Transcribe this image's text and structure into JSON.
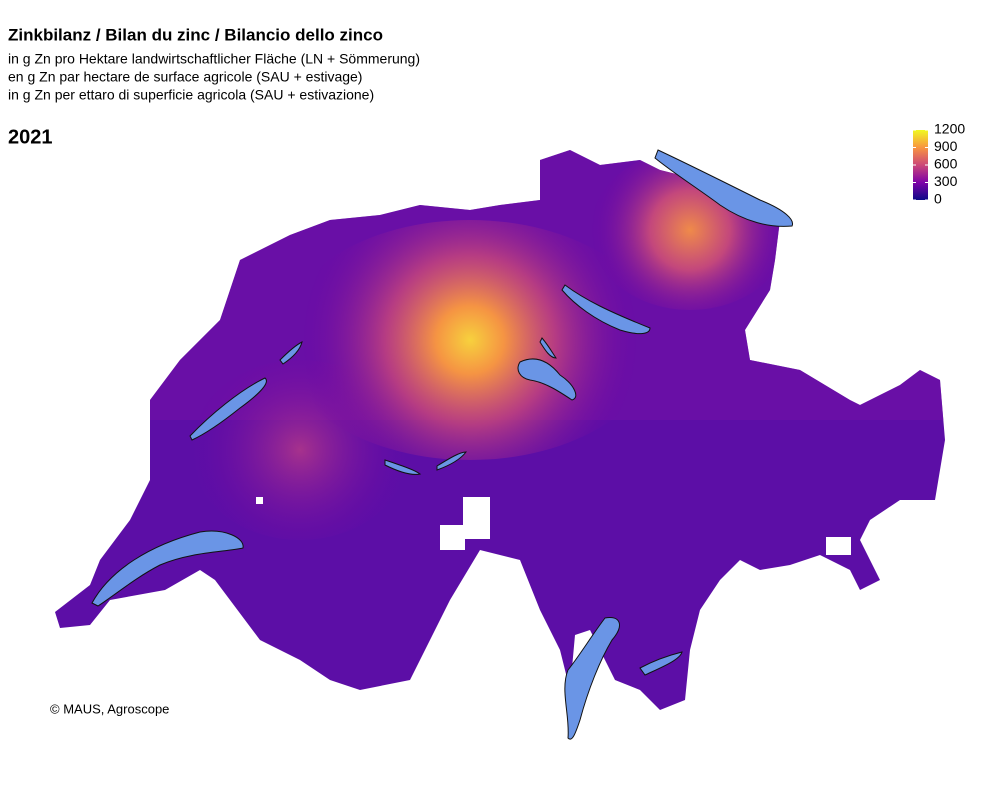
{
  "header": {
    "title": "Zinkbilanz / Bilan du zinc / Bilancio dello zinco",
    "subtitles": [
      "in g Zn pro Hektare landwirtschaftlicher Fläche (LN + Sömmerung)",
      "en g Zn par hectare de surface agricole (SAU + estivage)",
      "in g Zn per ettaro di superficie agricola (SAU + estivazione)"
    ],
    "year": "2021"
  },
  "legend": {
    "lim": [
      0,
      1200
    ],
    "ticks": [
      0,
      300,
      600,
      900,
      1200
    ],
    "colors": [
      "#0d0887",
      "#7e03a8",
      "#cc4778",
      "#f89540",
      "#f0f921"
    ]
  },
  "credit": "© MAUS, Agroscope"
}
